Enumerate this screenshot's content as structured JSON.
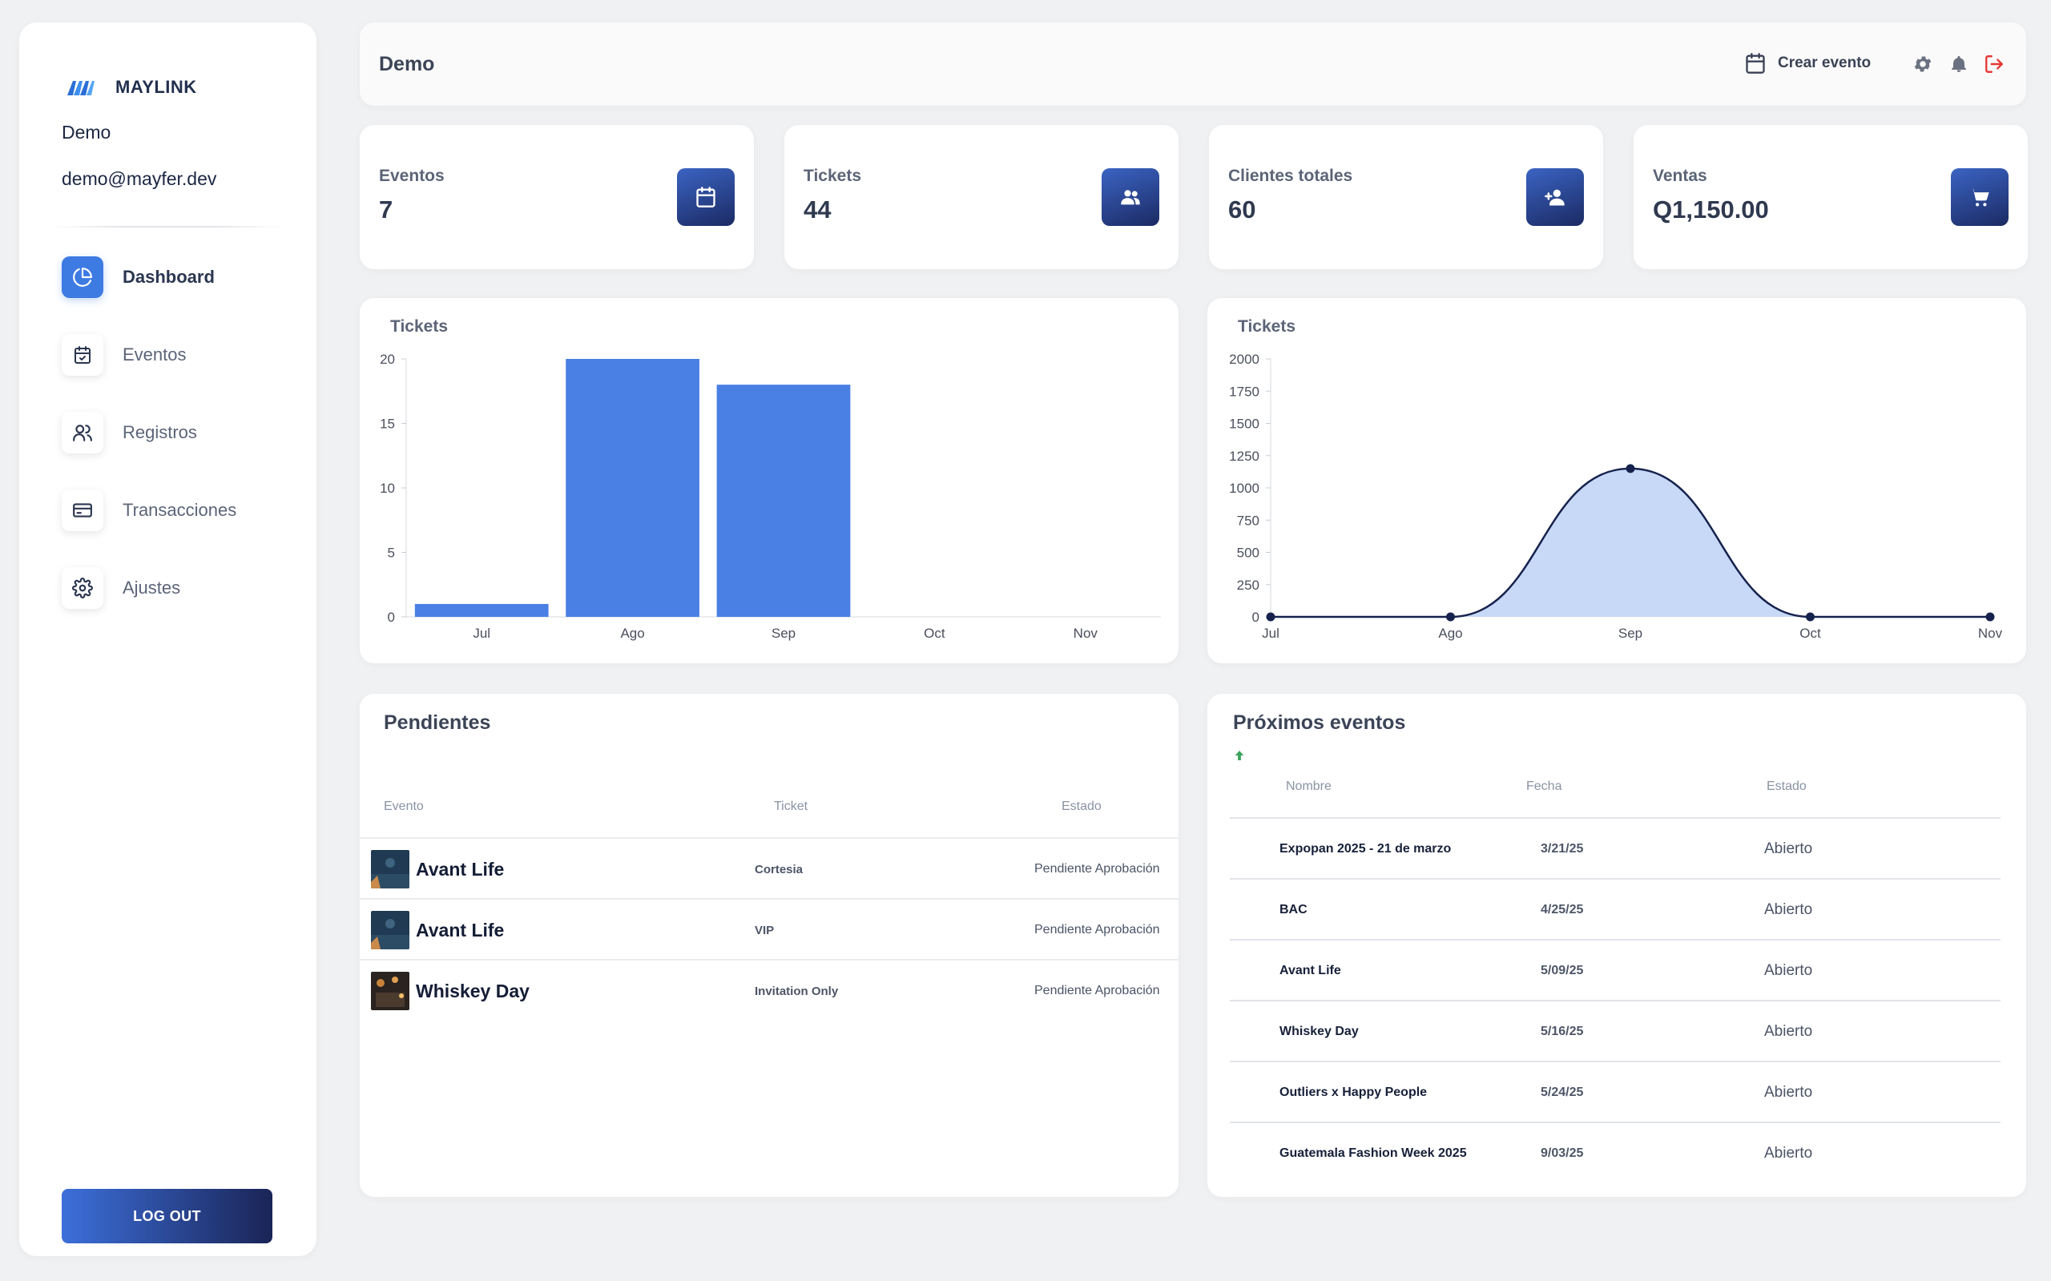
{
  "sidebar": {
    "brand": "MAYLINK",
    "user_name": "Demo",
    "user_email": "demo@mayfer.dev",
    "nav": [
      {
        "label": "Dashboard",
        "icon": "pie-chart-icon",
        "active": true
      },
      {
        "label": "Eventos",
        "icon": "calendar-check-icon",
        "active": false
      },
      {
        "label": "Registros",
        "icon": "users-icon",
        "active": false
      },
      {
        "label": "Transacciones",
        "icon": "credit-card-icon",
        "active": false
      },
      {
        "label": "Ajustes",
        "icon": "gear-icon",
        "active": false
      }
    ],
    "logout_label": "LOG OUT"
  },
  "header": {
    "title": "Demo",
    "create_event_label": "Crear evento",
    "icons": [
      "calendar-icon",
      "gear-icon",
      "bell-icon",
      "logout-icon"
    ]
  },
  "stats": [
    {
      "label": "Eventos",
      "value": "7",
      "icon": "calendar-icon"
    },
    {
      "label": "Tickets",
      "value": "44",
      "icon": "users-icon"
    },
    {
      "label": "Clientes totales",
      "value": "60",
      "icon": "user-plus-icon"
    },
    {
      "label": "Ventas",
      "value": "Q1,150.00",
      "icon": "cart-icon"
    }
  ],
  "charts": [
    {
      "title": "Tickets"
    },
    {
      "title": "Tickets"
    }
  ],
  "chart_data": [
    {
      "type": "bar",
      "title": "Tickets",
      "categories": [
        "Jul",
        "Ago",
        "Sep",
        "Oct",
        "Nov"
      ],
      "values": [
        1,
        20,
        18,
        0,
        0
      ],
      "ylim": [
        0,
        20
      ],
      "yticks": [
        0,
        5,
        10,
        15,
        20
      ],
      "color": "#4a7fe4"
    },
    {
      "type": "area",
      "title": "Tickets",
      "categories": [
        "Jul",
        "Ago",
        "Sep",
        "Oct",
        "Nov"
      ],
      "values": [
        0,
        0,
        1150,
        0,
        0
      ],
      "ylim": [
        0,
        2000
      ],
      "yticks": [
        0,
        250,
        500,
        750,
        1000,
        1250,
        1500,
        1750,
        2000
      ],
      "line_color": "#16224d",
      "fill_color": "#c7d9f7"
    }
  ],
  "pending": {
    "title": "Pendientes",
    "headers": {
      "evento": "Evento",
      "ticket": "Ticket",
      "estado": "Estado"
    },
    "rows": [
      {
        "evento": "Avant Life",
        "ticket": "Cortesia",
        "estado": "Pendiente Aprobación"
      },
      {
        "evento": "Avant Life",
        "ticket": "VIP",
        "estado": "Pendiente Aprobación"
      },
      {
        "evento": "Whiskey Day",
        "ticket": "Invitation Only",
        "estado": "Pendiente Aprobación"
      }
    ]
  },
  "upcoming": {
    "title": "Próximos eventos",
    "headers": {
      "nombre": "Nombre",
      "fecha": "Fecha",
      "estado": "Estado"
    },
    "rows": [
      {
        "nombre": "Expopan 2025 - 21 de marzo",
        "fecha": "3/21/25",
        "estado": "Abierto"
      },
      {
        "nombre": "BAC",
        "fecha": "4/25/25",
        "estado": "Abierto"
      },
      {
        "nombre": "Avant Life",
        "fecha": "5/09/25",
        "estado": "Abierto"
      },
      {
        "nombre": "Whiskey Day",
        "fecha": "5/16/25",
        "estado": "Abierto"
      },
      {
        "nombre": "Outliers x Happy People",
        "fecha": "5/24/25",
        "estado": "Abierto"
      },
      {
        "nombre": "Guatemala Fashion Week 2025",
        "fecha": "9/03/25",
        "estado": "Abierto"
      }
    ]
  },
  "colors": {
    "accent": "#3d7be3",
    "dark_navy": "#1a2456",
    "sort_arrow": "#3aa35a",
    "logout_icon": "#e53935"
  }
}
